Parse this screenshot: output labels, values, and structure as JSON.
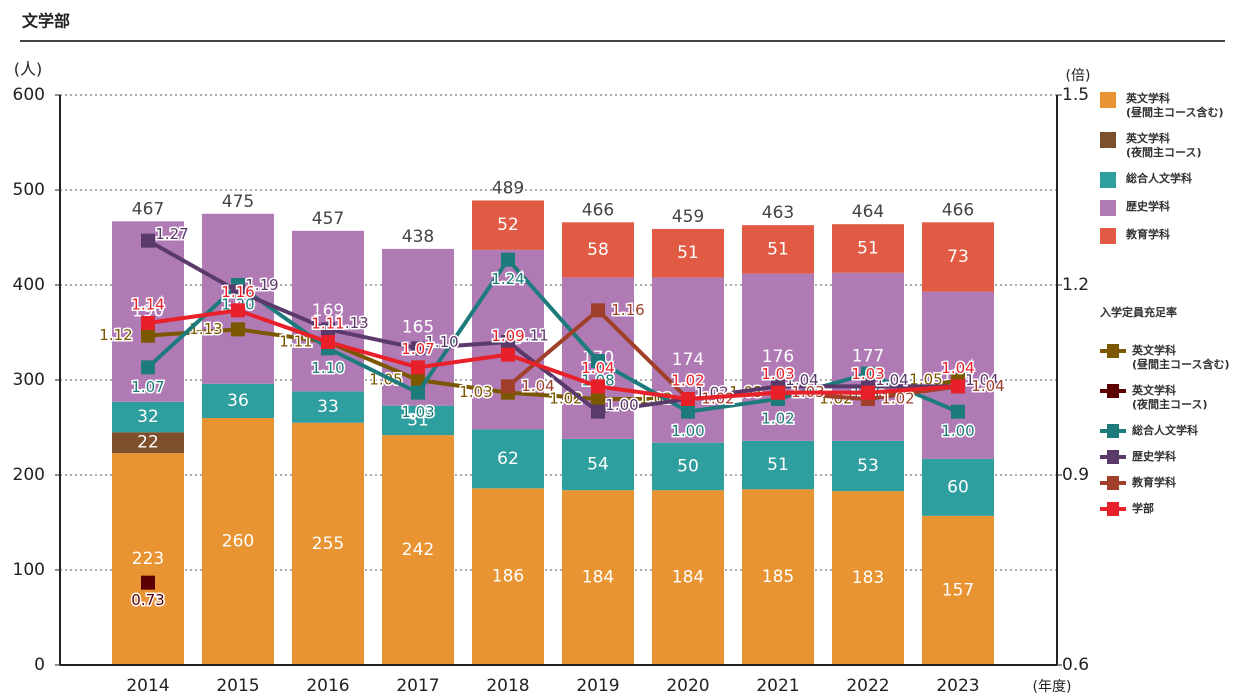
{
  "chart_data": {
    "type": "bar",
    "title": "文学部",
    "y_label": "(人)",
    "y2_label": "(倍)",
    "x_label": "(年度)",
    "line_legend_title": "入学定員充足率",
    "categories": [
      "2014",
      "2015",
      "2016",
      "2017",
      "2018",
      "2019",
      "2020",
      "2021",
      "2022",
      "2023"
    ],
    "totals": [
      467,
      475,
      457,
      438,
      489,
      466,
      459,
      463,
      464,
      466
    ],
    "ylim": [
      0,
      600
    ],
    "yticks": [
      0,
      100,
      200,
      300,
      400,
      500,
      600
    ],
    "y2lim": [
      0.6,
      1.5
    ],
    "y2ticks": [
      {
        "value": 0.6,
        "label": "0.6"
      },
      {
        "value": 0.9,
        "label": "0.9"
      },
      {
        "value": 1.2,
        "label": "1.2"
      },
      {
        "value": 1.5,
        "label": "1.5"
      }
    ],
    "grid": true,
    "series": [
      {
        "name": "英文学科\n(昼間主コース含む)",
        "type": "bar",
        "color": "#e89433",
        "values": [
          223,
          260,
          255,
          242,
          186,
          184,
          184,
          185,
          183,
          157
        ]
      },
      {
        "name": "英文学科\n(夜間主コース)",
        "type": "bar",
        "color": "#7d4f2a",
        "values": [
          22,
          null,
          null,
          null,
          null,
          null,
          null,
          null,
          null,
          null
        ]
      },
      {
        "name": "総合人文学科",
        "type": "bar",
        "color": "#2f9e9e",
        "values": [
          32,
          36,
          33,
          31,
          62,
          54,
          50,
          51,
          53,
          60
        ]
      },
      {
        "name": "歴史学科",
        "type": "bar",
        "color": "#b07ab5",
        "values": [
          190,
          179,
          169,
          165,
          189,
          170,
          174,
          176,
          177,
          176
        ]
      },
      {
        "name": "教育学科",
        "type": "bar",
        "color": "#e15a43",
        "values": [
          null,
          null,
          null,
          null,
          52,
          58,
          51,
          51,
          51,
          73
        ]
      },
      {
        "name": "英文学科\n(昼間主コース含む)",
        "type": "line",
        "axis": "y2",
        "color": "#7b5800",
        "values": [
          1.12,
          1.13,
          1.11,
          1.05,
          1.03,
          1.02,
          1.02,
          1.03,
          1.02,
          1.05
        ],
        "value_labels": [
          "1.12",
          "1.13",
          "1.11",
          "1.05",
          "1.03",
          "1.02",
          "1.02",
          "1.03",
          "1.02",
          "1.05"
        ]
      },
      {
        "name": "英文学科\n(夜間主コース)",
        "type": "line",
        "axis": "y2",
        "color": "#5a0000",
        "values": [
          0.73,
          null,
          null,
          null,
          null,
          null,
          null,
          null,
          null,
          null
        ],
        "value_labels": [
          "0.73",
          null,
          null,
          null,
          null,
          null,
          null,
          null,
          null,
          null
        ]
      },
      {
        "name": "総合人文学科",
        "type": "line",
        "axis": "y2",
        "color": "#1e7b7b",
        "values": [
          1.07,
          1.2,
          1.1,
          1.03,
          1.24,
          1.08,
          1.0,
          1.02,
          1.06,
          1.0
        ],
        "value_labels": [
          "1.07",
          "1.20",
          "1.10",
          "1.03",
          "1.24",
          "1.08",
          "1.00",
          "1.02",
          "1.06",
          "1.00"
        ]
      },
      {
        "name": "歴史学科",
        "type": "line",
        "axis": "y2",
        "color": "#5a3a6a",
        "values": [
          1.27,
          1.19,
          1.13,
          1.1,
          1.11,
          1.0,
          1.02,
          1.04,
          1.04,
          1.04
        ],
        "value_labels": [
          "1.27",
          "1.19",
          "1.13",
          "1.10",
          "1.11",
          "1.00",
          "1.02",
          "1.04",
          "1.04",
          "1.04"
        ]
      },
      {
        "name": "教育学科",
        "type": "line",
        "axis": "y2",
        "color": "#a0402a",
        "values": [
          null,
          null,
          null,
          null,
          1.04,
          1.16,
          1.02,
          1.03,
          1.02,
          1.04
        ],
        "value_labels": [
          null,
          null,
          null,
          null,
          "1.04",
          "1.16",
          "1.02",
          "1.03",
          "1.02",
          "1.04"
        ]
      },
      {
        "name": "学部",
        "type": "line",
        "axis": "y2",
        "color": "#e8202a",
        "values": [
          1.14,
          1.16,
          1.11,
          1.07,
          1.09,
          1.04,
          1.02,
          1.03,
          1.03,
          1.04
        ],
        "value_labels": [
          "1.14",
          "1.16",
          "1.11",
          "1.07",
          "1.09",
          "1.04",
          "1.02",
          "1.03",
          "1.03",
          "1.04"
        ]
      }
    ]
  }
}
